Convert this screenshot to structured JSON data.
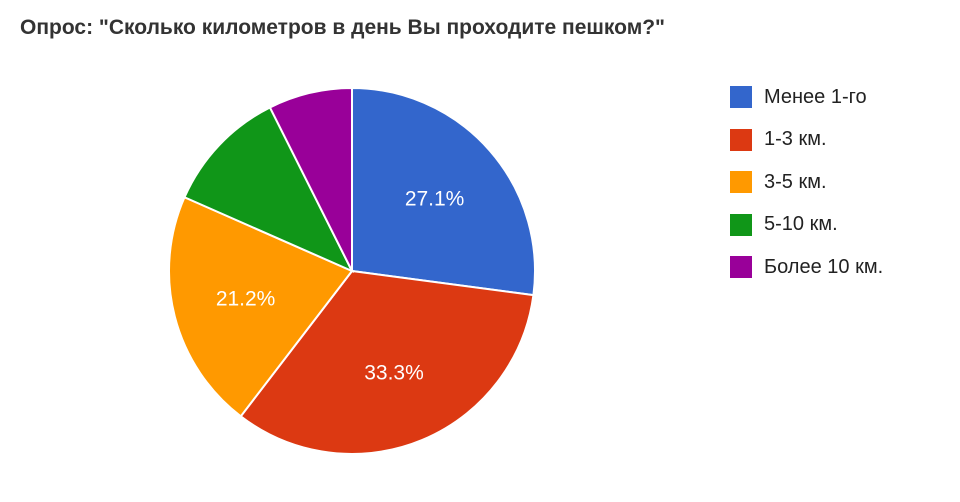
{
  "chart_data": {
    "type": "pie",
    "title": "Опрос: \"Сколько километров в день Вы проходите пешком?\"",
    "slices": [
      {
        "name": "Менее 1-го",
        "value": 27.1,
        "color": "#3366cc",
        "label": "27.1%"
      },
      {
        "name": "1-3 км.",
        "value": 33.3,
        "color": "#dc3912",
        "label": "33.3%"
      },
      {
        "name": "3-5 км.",
        "value": 21.2,
        "color": "#ff9900",
        "label": "21.2%"
      },
      {
        "name": "5-10 км.",
        "value": 11.0,
        "color": "#109618",
        "label": ""
      },
      {
        "name": "Более 10 км.",
        "value": 7.4,
        "color": "#990099",
        "label": ""
      }
    ],
    "legend_position": "right",
    "start_angle_deg": 0,
    "direction": "clockwise"
  }
}
